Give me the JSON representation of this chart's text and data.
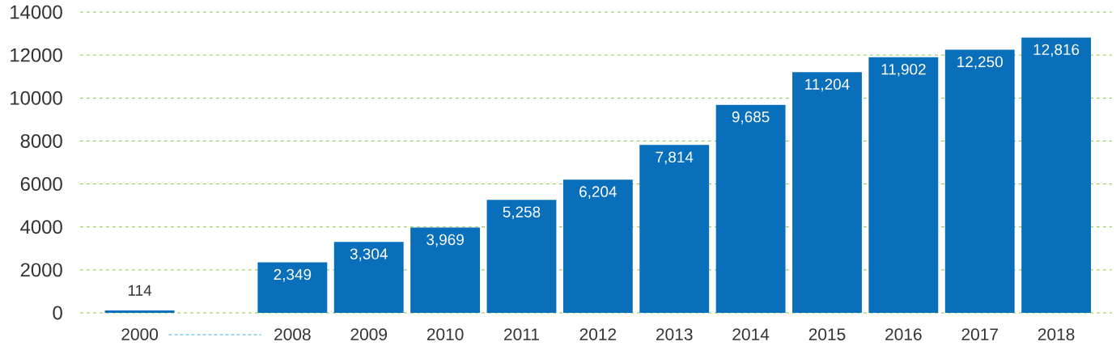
{
  "chart_data": {
    "type": "bar",
    "categories": [
      "2000",
      null,
      "2008",
      "2009",
      "2010",
      "2011",
      "2012",
      "2013",
      "2014",
      "2015",
      "2016",
      "2017",
      "2018"
    ],
    "values": [
      114,
      null,
      2349,
      3304,
      3969,
      5258,
      6204,
      7814,
      9685,
      11204,
      11902,
      12250,
      12816
    ],
    "value_labels": [
      "114",
      null,
      "2,349",
      "3,304",
      "3,969",
      "5,258",
      "6,204",
      "7,814",
      "9,685",
      "11,204",
      "11,902",
      "12,250",
      "12,816"
    ],
    "color": "#0a6fba",
    "ylim": [
      0,
      14000
    ],
    "yticks": [
      0,
      2000,
      4000,
      6000,
      8000,
      10000,
      12000,
      14000
    ],
    "grid": "y"
  }
}
